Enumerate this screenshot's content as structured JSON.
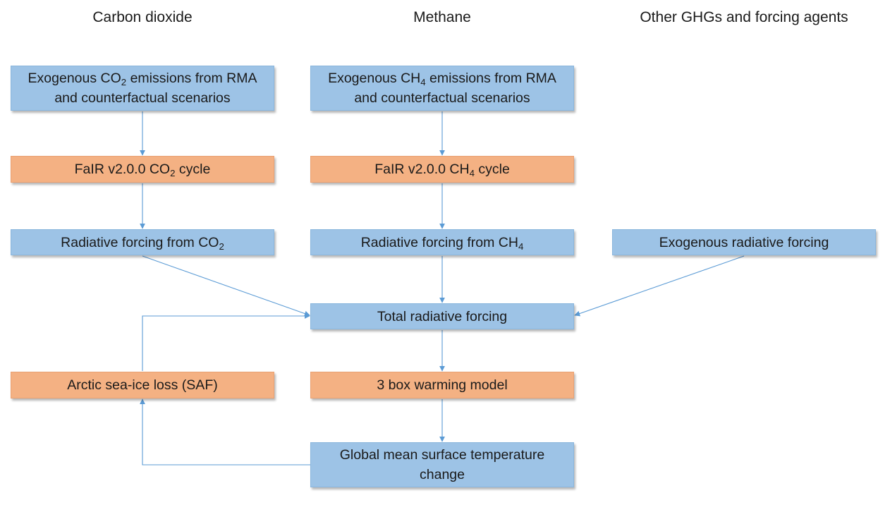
{
  "columns": {
    "co2": "Carbon dioxide",
    "ch4": "Methane",
    "other": "Other GHGs and forcing agents"
  },
  "boxes": {
    "co2_emissions": {
      "pre": "Exogenous CO",
      "sub": "2",
      "post": " emissions from RMA",
      "line2": "and counterfactual scenarios"
    },
    "ch4_emissions": {
      "pre": "Exogenous CH",
      "sub": "4",
      "post": " emissions from RMA",
      "line2": "and counterfactual scenarios"
    },
    "co2_cycle": {
      "pre": "FaIR v2.0.0 CO",
      "sub": "2",
      "post": " cycle"
    },
    "ch4_cycle": {
      "pre": "FaIR v2.0.0 CH",
      "sub": "4",
      "post": " cycle"
    },
    "co2_forcing": {
      "pre": "Radiative forcing from CO",
      "sub": "2"
    },
    "ch4_forcing": {
      "pre": "Radiative forcing from CH",
      "sub": "4"
    },
    "exo_forcing": "Exogenous radiative forcing",
    "total_forcing": "Total radiative forcing",
    "sea_ice": "Arctic sea-ice loss (SAF)",
    "warming_model": "3 box warming model",
    "gmst": {
      "line1": "Global mean surface temperature",
      "line2": "change"
    }
  },
  "colors": {
    "blue_box": "#9dc3e6",
    "orange_box": "#f4b183",
    "arrow": "#5b9bd5"
  }
}
